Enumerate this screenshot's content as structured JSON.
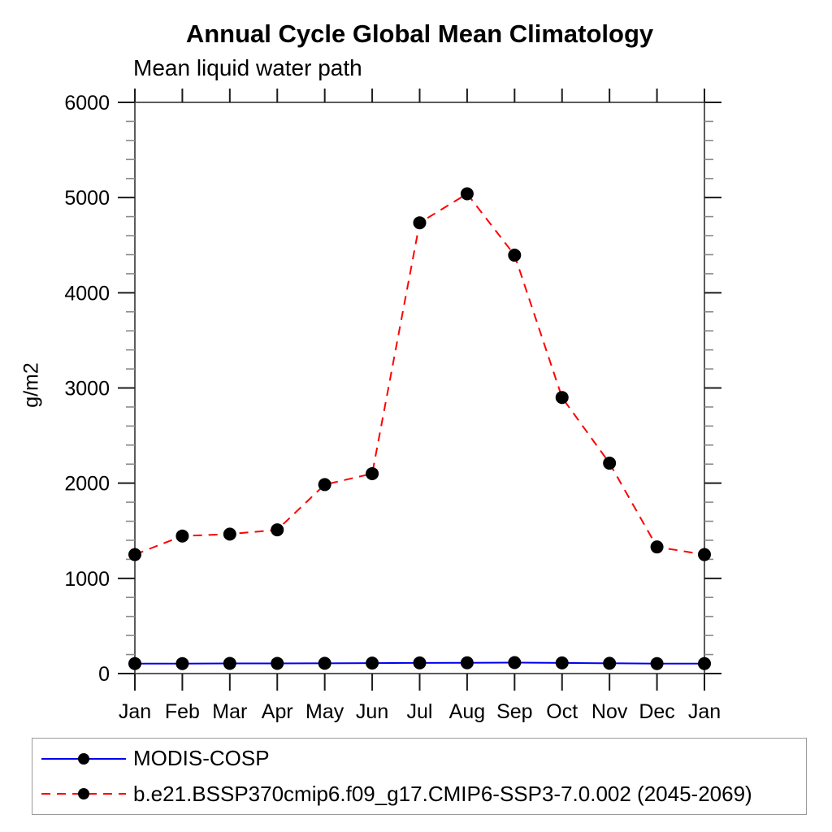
{
  "chart_data": {
    "type": "line",
    "title": "Annual Cycle Global Mean Climatology",
    "subtitle": "Mean liquid water path",
    "ylabel": "g/m2",
    "categories": [
      "Jan",
      "Feb",
      "Mar",
      "Apr",
      "May",
      "Jun",
      "Jul",
      "Aug",
      "Sep",
      "Oct",
      "Nov",
      "Dec",
      "Jan"
    ],
    "ylim": [
      0,
      6000
    ],
    "ytick_major_step": 1000,
    "ytick_minor_step": 200,
    "grid": false,
    "legend_position": "bottom-left-box",
    "series": [
      {
        "name": "MODIS-COSP",
        "line_color": "#0000ee",
        "line_style": "solid",
        "marker": "filled-circle",
        "marker_color": "#000000",
        "values": [
          105,
          105,
          107,
          107,
          108,
          110,
          112,
          113,
          115,
          112,
          108,
          105,
          105
        ]
      },
      {
        "name": "b.e21.BSSP370cmip6.f09_g17.CMIP6-SSP3-7.0.002 (2045-2069)",
        "line_color": "#ff0000",
        "line_style": "dashed",
        "marker": "filled-circle",
        "marker_color": "#000000",
        "values": [
          1250,
          1445,
          1465,
          1510,
          1985,
          2100,
          4735,
          5040,
          4395,
          2900,
          2210,
          1330,
          1250
        ]
      }
    ],
    "axis_colors": {
      "frame": "#5c5c5c",
      "major_tick": "#1c1c1c",
      "minor_tick": "#8a8a8a",
      "tick_label": "#000000"
    }
  }
}
